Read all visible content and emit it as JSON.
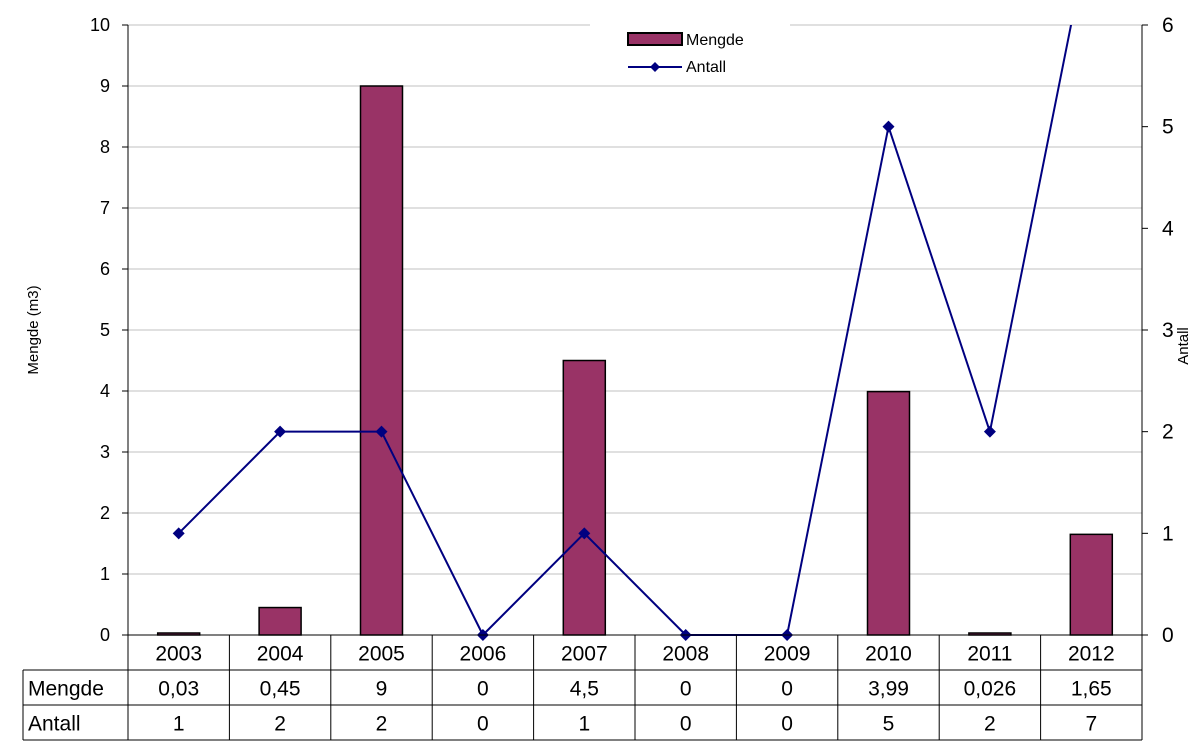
{
  "chart_data": {
    "type": "bar",
    "categories": [
      "2003",
      "2004",
      "2005",
      "2006",
      "2007",
      "2008",
      "2009",
      "2010",
      "2011",
      "2012"
    ],
    "series": [
      {
        "name": "Mengde",
        "type": "bar",
        "axis": "left",
        "color": "#993366",
        "values": [
          0.03,
          0.45,
          9,
          0,
          4.5,
          0,
          0,
          3.99,
          0.026,
          1.65
        ]
      },
      {
        "name": "Antall",
        "type": "line",
        "axis": "right",
        "color": "#000080",
        "values": [
          1,
          2,
          2,
          0,
          1,
          0,
          0,
          5,
          2,
          7
        ]
      }
    ],
    "ylabel": "Mengde (m3)",
    "y2label": "Antall",
    "ylim": [
      0,
      10
    ],
    "y2lim": [
      0,
      6
    ],
    "yticks": [
      "0",
      "1",
      "2",
      "3",
      "4",
      "5",
      "6",
      "7",
      "8",
      "9",
      "10"
    ],
    "y2ticks": [
      "0",
      "1",
      "2",
      "3",
      "4",
      "5",
      "6"
    ],
    "grid": true,
    "legend": "top-center",
    "table": {
      "rows": [
        {
          "label": "Mengde",
          "cells": [
            "0,03",
            "0,45",
            "9",
            "0",
            "4,5",
            "0",
            "0",
            "3,99",
            "0,026",
            "1,65"
          ]
        },
        {
          "label": "Antall",
          "cells": [
            "1",
            "2",
            "2",
            "0",
            "1",
            "0",
            "0",
            "5",
            "2",
            "7"
          ]
        }
      ]
    }
  }
}
